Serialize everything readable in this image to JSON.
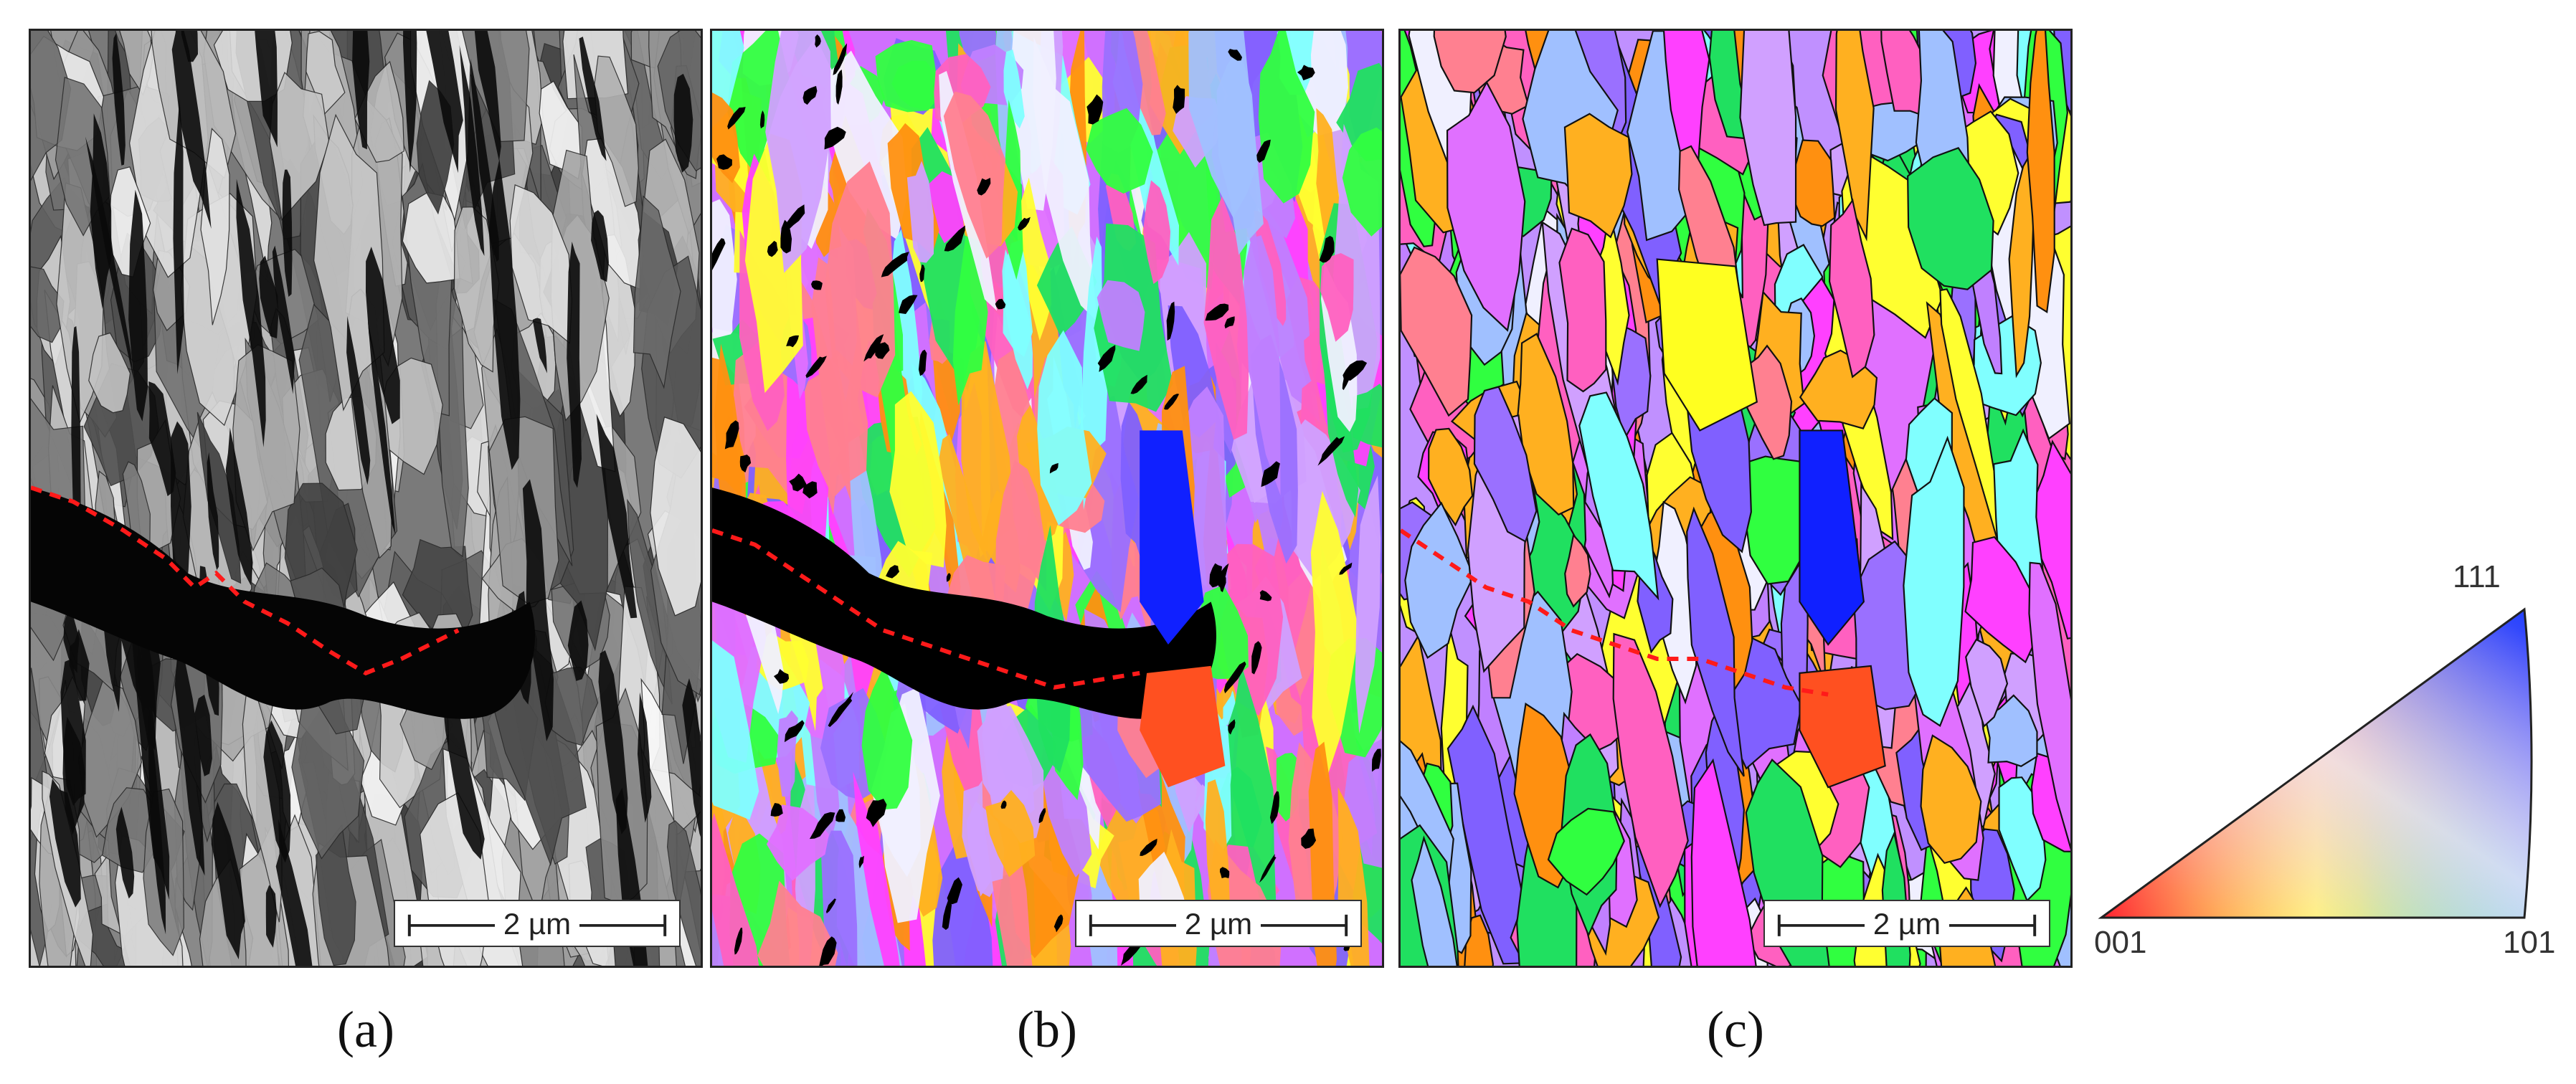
{
  "panels": [
    {
      "id": "a",
      "caption": "(a)",
      "scale_label": "2 µm"
    },
    {
      "id": "b",
      "caption": "(b)",
      "scale_label": "2 µm"
    },
    {
      "id": "c",
      "caption": "(c)",
      "scale_label": "2 µm"
    }
  ],
  "ipf_key": {
    "corner_001": "001",
    "corner_101": "101",
    "corner_111": "111",
    "colors": {
      "corner_001": "#ff2030",
      "corner_101": "#10e030",
      "corner_111": "#2040ff"
    }
  },
  "overlay": {
    "crack_trace_color": "#ff1a1a"
  },
  "ipf_palette": [
    "#ff40ff",
    "#e070ff",
    "#c080ff",
    "#9a70ff",
    "#8060ff",
    "#ffb020",
    "#ff9010",
    "#30ff40",
    "#20e060",
    "#ffff30",
    "#ff8090",
    "#a0c0ff",
    "#80ffff",
    "#ff60c0",
    "#d0a0ff",
    "#f0f0ff"
  ]
}
